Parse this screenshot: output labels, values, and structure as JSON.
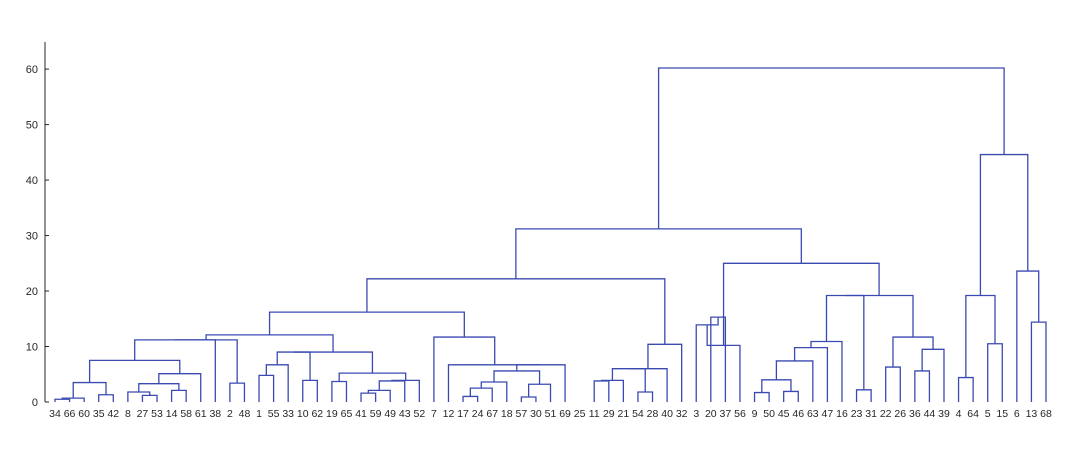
{
  "chart_data": {
    "type": "dendrogram",
    "ylim": [
      0,
      62
    ],
    "yticks": [
      0,
      10,
      20,
      30,
      40,
      50,
      60
    ],
    "leaves": [
      "34",
      "66",
      "60",
      "35",
      "42",
      "8",
      "27",
      "53",
      "14",
      "58",
      "61",
      "38",
      "2",
      "48",
      "1",
      "55",
      "33",
      "10",
      "62",
      "19",
      "65",
      "41",
      "59",
      "49",
      "43",
      "52",
      "7",
      "12",
      "17",
      "24",
      "67",
      "18",
      "57",
      "30",
      "51",
      "69",
      "25",
      "11",
      "29",
      "21",
      "54",
      "28",
      "40",
      "32",
      "3",
      "20",
      "37",
      "56",
      "9",
      "50",
      "45",
      "46",
      "63",
      "47",
      "16",
      "23",
      "31",
      "22",
      "26",
      "36",
      "44",
      "39",
      "4",
      "64",
      "5",
      "15",
      "6",
      "13",
      "68"
    ],
    "merges": [
      [
        0,
        1,
        0.5
      ],
      [
        2,
        3,
        0.6
      ],
      [
        4,
        5,
        1.3
      ],
      [
        70,
        71,
        3.5
      ],
      [
        72,
        73,
        7.5
      ],
      [
        6,
        7,
        1.8
      ],
      [
        8,
        9,
        0.9
      ],
      [
        77,
        10,
        3.2
      ],
      [
        11,
        12,
        3.5
      ],
      [
        78,
        79,
        2.3
      ],
      [
        76,
        80,
        5.2
      ],
      [
        75,
        81,
        11.2
      ],
      [
        14,
        15,
        3.4
      ],
      [
        16,
        17,
        3.0
      ],
      [
        83,
        18,
        4.9
      ],
      [
        19,
        20,
        4.0
      ],
      [
        84,
        85,
        6.7
      ],
      [
        86,
        87,
        9.0
      ],
      [
        21,
        22,
        3.7
      ],
      [
        24,
        25,
        2.0
      ],
      [
        89,
        26,
        1.4
      ],
      [
        27,
        28,
        2.8
      ],
      [
        90,
        91,
        3.7
      ],
      [
        88,
        92,
        5.2
      ],
      [
        88,
        93,
        9.0
      ],
      [
        82,
        94,
        12.1
      ],
      [
        30,
        31,
        0.8
      ],
      [
        96,
        32,
        3.1
      ],
      [
        97,
        33,
        2.2
      ],
      [
        98,
        34,
        2.3
      ],
      [
        99,
        100,
        3.6
      ],
      [
        35,
        36,
        2.6
      ],
      [
        37,
        38,
        1.0
      ],
      [
        102,
        39,
        3.4
      ],
      [
        101,
        103,
        5.9
      ],
      [
        104,
        40,
        6.7
      ],
      [
        29,
        105,
        11.7
      ],
      [
        95,
        106,
        16.2
      ],
      [
        41,
        42,
        3.9
      ],
      [
        43,
        44,
        3.9
      ],
      [
        108,
        45,
        1.8
      ],
      [
        107,
        109,
        3.6
      ],
      [
        110,
        46,
        6.0
      ],
      [
        47,
        48,
        2.2
      ],
      [
        111,
        112,
        10.4
      ],
      [
        106,
        113,
        22.3
      ],
      [
        49,
        50,
        13.9
      ],
      [
        114,
        51,
        15.3
      ],
      [
        52,
        115,
        10.2
      ],
      [
        53,
        54,
        1.8
      ],
      [
        55,
        56,
        1.9
      ],
      [
        117,
        118,
        4.1
      ],
      [
        119,
        57,
        7.4
      ],
      [
        120,
        58,
        9.8
      ],
      [
        121,
        59,
        10.9
      ],
      [
        60,
        61,
        7.5
      ],
      [
        62,
        63,
        2.2
      ],
      [
        123,
        124,
        7.4
      ],
      [
        122,
        125,
        19.2
      ],
      [
        64,
        65,
        6.4
      ],
      [
        66,
        67,
        5.6
      ],
      [
        68,
        69,
        9.6
      ],
      [
        128,
        129,
        11.7
      ],
      [
        127,
        130,
        19.2
      ],
      [
        116,
        131,
        25.0
      ],
      [
        114,
        132,
        31.2
      ],
      [
        70,
        71,
        4.4
      ],
      [
        72,
        73,
        19.2
      ],
      [
        74,
        75,
        10.6
      ],
      [
        135,
        136,
        19.2
      ],
      [
        76,
        77,
        23.6
      ],
      [
        78,
        79,
        14.4
      ],
      [
        138,
        139,
        23.6
      ],
      [
        137,
        140,
        44.6
      ],
      [
        134,
        141,
        60.2
      ]
    ]
  }
}
